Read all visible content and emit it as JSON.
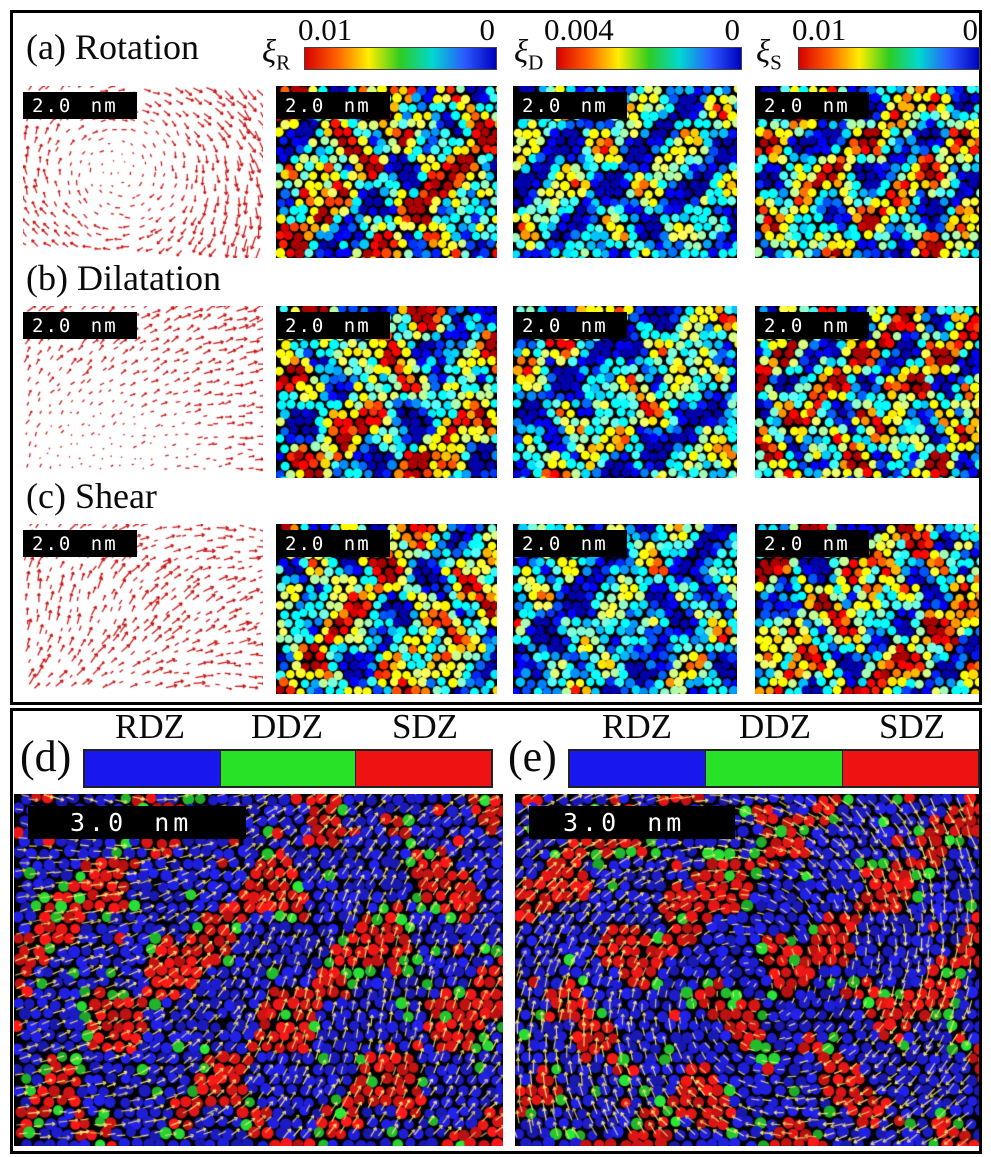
{
  "figure": {
    "background": "#ffffff",
    "border_color": "#000000",
    "scalebar_top": "2.0 nm",
    "scalebar_bottom": "3.0 nm",
    "panels_top": [
      {
        "label": "(a) Rotation"
      },
      {
        "label": "(b) Dilatation"
      },
      {
        "label": "(c) Shear"
      }
    ],
    "colorbars": [
      {
        "symbol": "ξ",
        "sub": "R",
        "max": "0.01",
        "min": "0"
      },
      {
        "symbol": "ξ",
        "sub": "D",
        "max": "0.004",
        "min": "0"
      },
      {
        "symbol": "ξ",
        "sub": "S",
        "max": "0.01",
        "min": "0"
      }
    ],
    "colorbar_gradient": [
      "#d80000",
      "#ff6000",
      "#ffee00",
      "#2ecc22",
      "#00d8d0",
      "#2a5cff",
      "#0000c0"
    ],
    "panels_bottom": [
      {
        "label": "(d)"
      },
      {
        "label": "(e)"
      }
    ],
    "zone_legend": {
      "items": [
        {
          "label": "RDZ",
          "color": "#1717ee"
        },
        {
          "label": "DDZ",
          "color": "#28e228"
        },
        {
          "label": "SDZ",
          "color": "#ee1212"
        }
      ]
    },
    "vector_color": "#c81414",
    "flow_arrow_color": "#ffe878"
  },
  "render": {
    "a_field": {
      "type": "vector",
      "mode": "rotation",
      "seed": 101
    },
    "a_xiR": {
      "type": "jet",
      "seed": 111,
      "gain": 1.3,
      "off": 0.02
    },
    "a_xiD": {
      "type": "jet",
      "seed": 112,
      "gain": 0.95,
      "off": -0.2
    },
    "a_xiS": {
      "type": "jet",
      "seed": 113,
      "gain": 1.1,
      "off": -0.05
    },
    "b_field": {
      "type": "vector",
      "mode": "dilatation",
      "seed": 102
    },
    "b_xiR": {
      "type": "jet",
      "seed": 121,
      "gain": 1.15,
      "off": -0.03
    },
    "b_xiD": {
      "type": "jet",
      "seed": 122,
      "gain": 1.0,
      "off": -0.15
    },
    "b_xiS": {
      "type": "jet",
      "seed": 123,
      "gain": 1.25,
      "off": 0.0
    },
    "c_field": {
      "type": "vector",
      "mode": "shear",
      "seed": 103
    },
    "c_xiR": {
      "type": "jet",
      "seed": 131,
      "gain": 1.15,
      "off": -0.02
    },
    "c_xiD": {
      "type": "jet",
      "seed": 132,
      "gain": 0.9,
      "off": -0.2
    },
    "c_xiS": {
      "type": "jet",
      "seed": 133,
      "gain": 1.25,
      "off": 0.0
    },
    "d_map": {
      "type": "zones",
      "seed": 141,
      "flow": "diag"
    },
    "e_map": {
      "type": "zones",
      "seed": 142,
      "flow": "swirl"
    }
  }
}
